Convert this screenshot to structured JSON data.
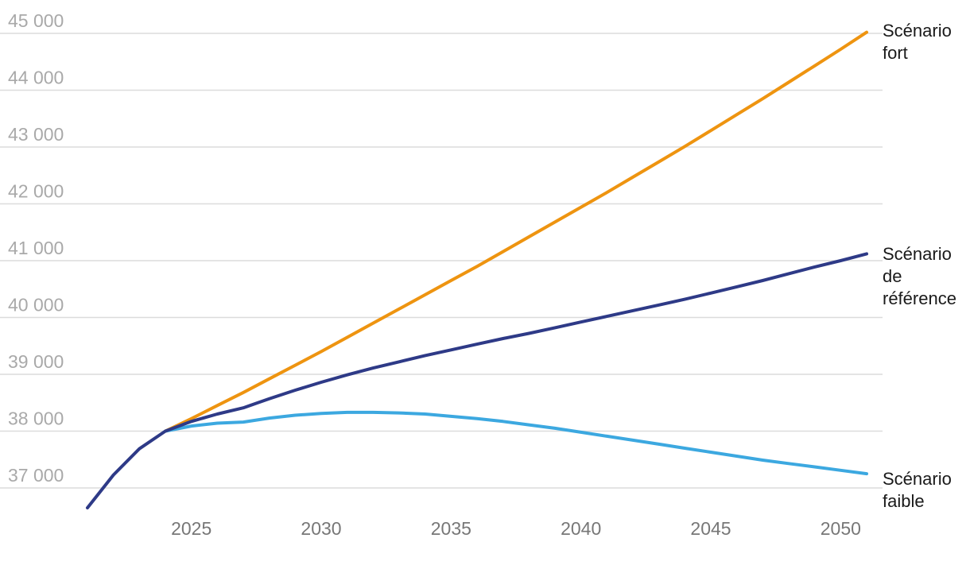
{
  "chart_data": {
    "type": "line",
    "title": "",
    "xlabel": "",
    "ylabel": "",
    "xlim": [
      2021,
      2051
    ],
    "ylim": [
      36600,
      45000
    ],
    "y_ticks": [
      37000,
      38000,
      39000,
      40000,
      41000,
      42000,
      43000,
      44000,
      45000
    ],
    "y_tick_labels": [
      "37 000",
      "38 000",
      "39 000",
      "40 000",
      "41 000",
      "42 000",
      "43 000",
      "44 000",
      "45 000"
    ],
    "x_ticks": [
      2025,
      2030,
      2035,
      2040,
      2045,
      2050
    ],
    "x_tick_labels": [
      "2025",
      "2030",
      "2035",
      "2040",
      "2045",
      "2050"
    ],
    "grid": true,
    "legend": "direct labels at line ends",
    "series": [
      {
        "name": "Scénario fort",
        "label_lines": [
          "Scénario",
          "fort"
        ],
        "color": "#ee9410",
        "x": [
          2024,
          2025,
          2026,
          2027,
          2028,
          2029,
          2030,
          2031,
          2032,
          2033,
          2034,
          2035,
          2036,
          2037,
          2038,
          2039,
          2040,
          2041,
          2042,
          2043,
          2044,
          2045,
          2046,
          2047,
          2048,
          2049,
          2050,
          2051
        ],
        "values": [
          38000,
          38220,
          38450,
          38680,
          38920,
          39160,
          39400,
          39650,
          39900,
          40150,
          40400,
          40650,
          40900,
          41160,
          41420,
          41680,
          41940,
          42200,
          42470,
          42740,
          43010,
          43290,
          43570,
          43850,
          44140,
          44430,
          44720,
          45020
        ]
      },
      {
        "name": "Scénario de référence",
        "label_lines": [
          "Scénario",
          "de",
          "référence"
        ],
        "color": "#2e3a87",
        "x": [
          2021,
          2022,
          2023,
          2024,
          2025,
          2026,
          2027,
          2028,
          2029,
          2030,
          2031,
          2032,
          2033,
          2034,
          2035,
          2036,
          2037,
          2038,
          2039,
          2040,
          2041,
          2042,
          2043,
          2044,
          2045,
          2046,
          2047,
          2048,
          2049,
          2050,
          2051
        ],
        "values": [
          36650,
          37230,
          37690,
          38000,
          38170,
          38300,
          38410,
          38570,
          38720,
          38860,
          38990,
          39110,
          39220,
          39330,
          39430,
          39530,
          39630,
          39720,
          39820,
          39920,
          40020,
          40120,
          40220,
          40320,
          40430,
          40540,
          40650,
          40770,
          40890,
          41000,
          41120
        ]
      },
      {
        "name": "Scénario faible",
        "label_lines": [
          "Scénario",
          "faible"
        ],
        "color": "#3ca8e0",
        "x": [
          2024,
          2025,
          2026,
          2027,
          2028,
          2029,
          2030,
          2031,
          2032,
          2033,
          2034,
          2035,
          2036,
          2037,
          2038,
          2039,
          2040,
          2041,
          2042,
          2043,
          2044,
          2045,
          2046,
          2047,
          2048,
          2049,
          2050,
          2051
        ],
        "values": [
          38000,
          38090,
          38140,
          38160,
          38230,
          38280,
          38310,
          38330,
          38330,
          38320,
          38300,
          38260,
          38220,
          38170,
          38110,
          38050,
          37980,
          37910,
          37840,
          37770,
          37700,
          37630,
          37560,
          37490,
          37430,
          37370,
          37310,
          37250
        ]
      }
    ]
  }
}
